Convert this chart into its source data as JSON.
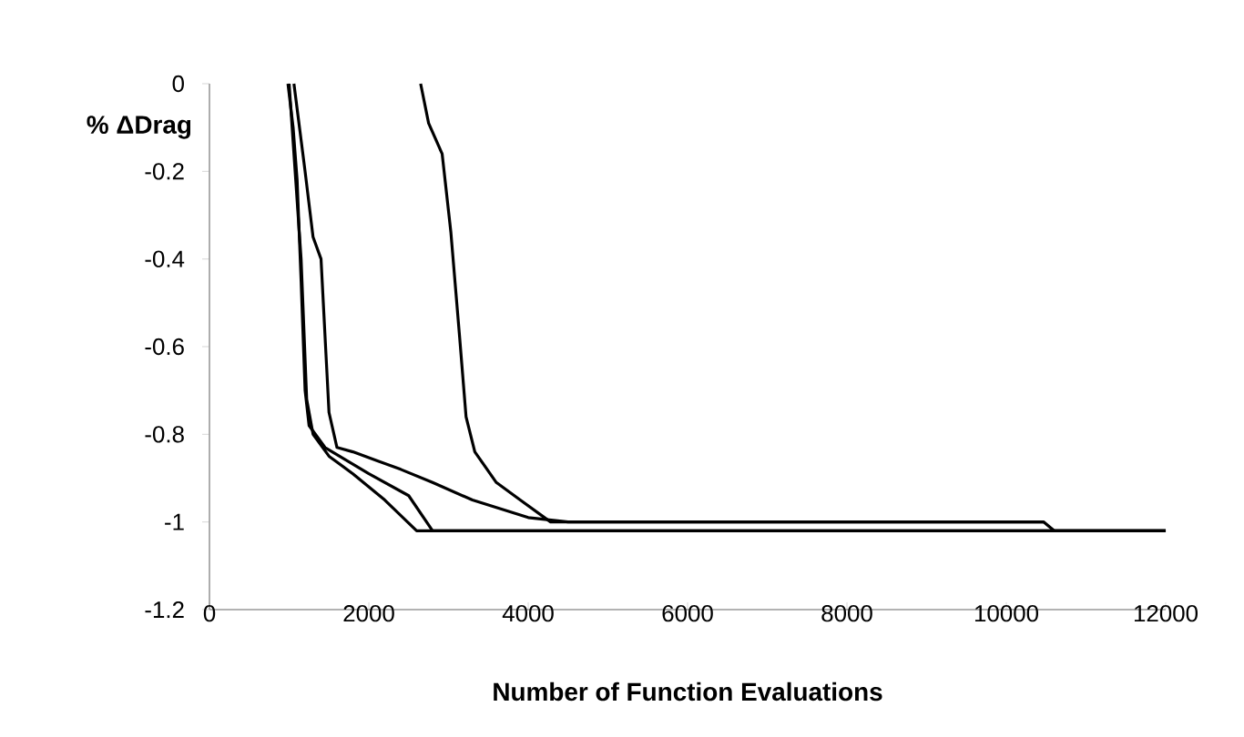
{
  "chart_data": {
    "type": "line",
    "xlabel": "Number of Function Evaluations",
    "ylabel": "% ΔDrag",
    "xlim": [
      0,
      12000
    ],
    "xticks": [
      0,
      2000,
      4000,
      6000,
      8000,
      10000,
      12000
    ],
    "ylim": [
      -1.2,
      0
    ],
    "yticks": [
      -1.2,
      -1,
      -0.8,
      -0.6,
      -0.4,
      -0.2,
      0
    ],
    "marker": "none",
    "line_style": "solid",
    "series": [
      {
        "color": "#000000",
        "x": [
          2650,
          2750,
          2920,
          3030,
          3140,
          3220,
          3330,
          3600,
          3900,
          4280,
          10470,
          10600,
          12000
        ],
        "values": [
          0,
          -0.09,
          -0.16,
          -0.34,
          -0.58,
          -0.76,
          -0.84,
          -0.91,
          -0.95,
          -1.0,
          -1.0,
          -1.02,
          -1.02
        ]
      },
      {
        "color": "#000000",
        "x": [
          985,
          1050,
          1100,
          1150,
          1200,
          1250,
          1450,
          2000,
          2500,
          2800,
          12000
        ],
        "values": [
          0,
          -0.1,
          -0.22,
          -0.45,
          -0.7,
          -0.78,
          -0.83,
          -0.89,
          -0.94,
          -1.02,
          -1.02
        ]
      },
      {
        "color": "#000000",
        "x": [
          1060,
          1200,
          1300,
          1400,
          1500,
          1600,
          1800,
          2100,
          2400,
          2800,
          3300,
          4000,
          4500,
          10470
        ],
        "values": [
          0,
          -0.2,
          -0.35,
          -0.4,
          -0.75,
          -0.83,
          -0.84,
          -0.86,
          -0.88,
          -0.91,
          -0.95,
          -0.99,
          -1.0,
          -1.0
        ]
      },
      {
        "color": "#000000",
        "x": [
          1000,
          1150,
          1220,
          1300,
          1500,
          1800,
          2200,
          2600,
          12000
        ],
        "values": [
          0,
          -0.4,
          -0.72,
          -0.8,
          -0.85,
          -0.89,
          -0.95,
          -1.02,
          -1.02
        ]
      }
    ]
  }
}
